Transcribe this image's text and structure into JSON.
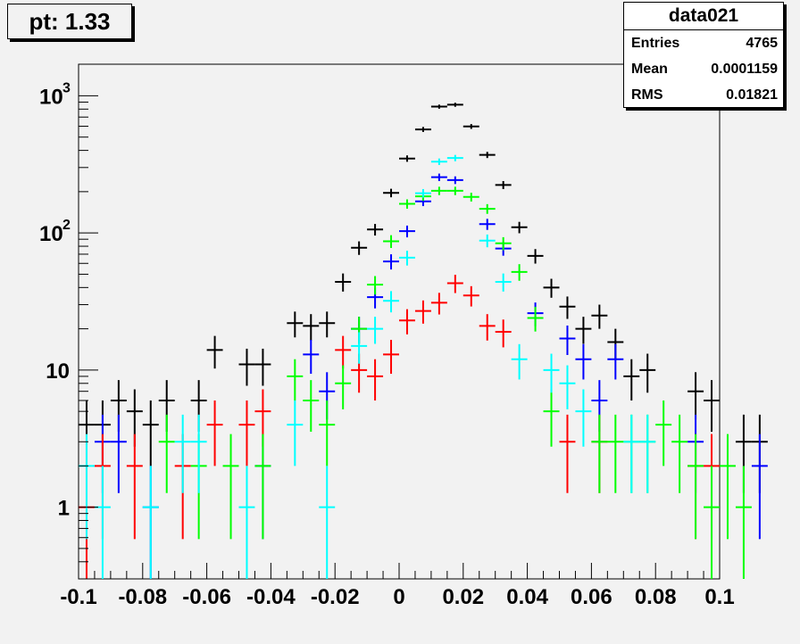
{
  "title": "pt: 1.33",
  "stats": {
    "name": "data021",
    "rows": [
      {
        "key": "Entries",
        "value": "4765"
      },
      {
        "key": "Mean",
        "value": "0.0001159"
      },
      {
        "key": "RMS",
        "value": "0.01821"
      }
    ]
  },
  "chart_data": {
    "type": "scatter",
    "title": "pt: 1.33",
    "xlabel": "",
    "ylabel": "",
    "xlim": [
      -0.1,
      0.1
    ],
    "ylim": [
      0.3,
      1700
    ],
    "yscale": "log",
    "grid": false,
    "legend": "none",
    "x_ticks": [
      {
        "v": -0.1,
        "label": "-0.1"
      },
      {
        "v": -0.08,
        "label": "-0.08"
      },
      {
        "v": -0.06,
        "label": "-0.06"
      },
      {
        "v": -0.04,
        "label": "-0.04"
      },
      {
        "v": -0.02,
        "label": "-0.02"
      },
      {
        "v": 0,
        "label": "0"
      },
      {
        "v": 0.02,
        "label": "0.02"
      },
      {
        "v": 0.04,
        "label": "0.04"
      },
      {
        "v": 0.06,
        "label": "0.06"
      },
      {
        "v": 0.08,
        "label": "0.08"
      },
      {
        "v": 0.1,
        "label": "0.1"
      }
    ],
    "y_ticks": [
      {
        "v": 1,
        "label": "1"
      },
      {
        "v": 10,
        "label": "10"
      },
      {
        "v": 100,
        "base": "10",
        "exp": "2"
      },
      {
        "v": 1000,
        "base": "10",
        "exp": "3"
      }
    ],
    "bin_width": 0.005,
    "series": [
      {
        "color": "#000000",
        "x_start": -0.0975,
        "values": [
          4,
          4,
          6,
          5,
          4,
          6,
          null,
          6,
          14,
          null,
          11,
          11,
          null,
          22,
          21,
          22,
          44,
          78,
          106,
          196,
          349,
          569,
          834,
          861,
          598,
          371,
          224,
          110,
          68,
          40,
          29,
          20,
          25,
          16,
          9,
          10,
          null,
          null,
          7,
          6,
          null,
          3,
          3
        ]
      },
      {
        "color": "#0000ff",
        "x_start": -0.0975,
        "values": [
          null,
          3,
          3,
          null,
          1,
          null,
          null,
          null,
          null,
          null,
          null,
          2,
          null,
          null,
          13,
          7,
          null,
          20,
          34,
          62,
          103,
          170,
          255,
          243,
          null,
          116,
          77,
          null,
          26,
          null,
          17,
          12,
          6,
          12,
          null,
          null,
          null,
          null,
          3,
          null,
          null,
          null,
          2
        ]
      },
      {
        "color": "#ff0000",
        "x_start": -0.0975,
        "values": [
          1,
          2,
          null,
          2,
          null,
          null,
          2,
          null,
          4,
          null,
          4,
          5,
          null,
          null,
          null,
          null,
          14,
          10,
          9,
          13,
          23,
          27,
          31,
          43,
          35,
          21,
          19,
          null,
          null,
          null,
          3,
          null,
          3,
          null,
          null,
          null,
          null,
          null,
          2,
          2,
          null,
          null,
          null
        ]
      },
      {
        "color": "#00ff00",
        "x_start": -0.0975,
        "values": [
          null,
          null,
          null,
          null,
          null,
          3,
          null,
          2,
          null,
          2,
          null,
          2,
          null,
          9,
          6,
          4,
          8,
          20,
          42,
          87,
          163,
          185,
          203,
          203,
          183,
          150,
          84,
          52,
          24,
          5,
          null,
          null,
          3,
          3,
          3,
          3,
          4,
          3,
          2,
          1,
          2,
          1,
          null
        ]
      },
      {
        "color": "#00ffff",
        "x_start": -0.0975,
        "values": [
          2,
          1,
          null,
          null,
          1,
          null,
          3,
          3,
          null,
          null,
          1,
          null,
          null,
          4,
          null,
          1,
          null,
          15,
          20,
          32,
          66,
          195,
          331,
          352,
          null,
          88,
          44,
          12,
          null,
          10,
          8,
          5,
          null,
          null,
          3,
          3,
          null,
          null,
          null,
          null,
          null,
          null,
          null
        ]
      }
    ]
  }
}
